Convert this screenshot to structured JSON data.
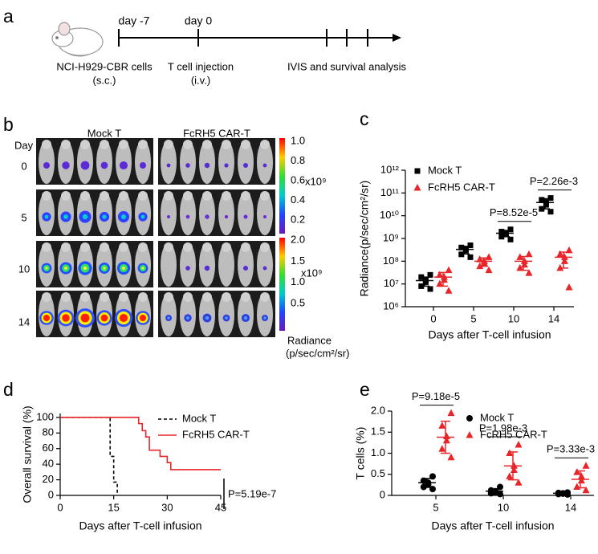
{
  "panel_labels": [
    "a",
    "b",
    "c",
    "d",
    "e"
  ],
  "timeline": {
    "events": [
      {
        "day": "day -7",
        "label": "NCI-H929-CBR cells",
        "route": "(s.c.)"
      },
      {
        "day": "day 0",
        "label": "T cell injection",
        "route": "(i.v.)"
      }
    ],
    "analysis": "IVIS and survival analysis"
  },
  "imaging": {
    "groups": [
      "Mock T",
      "FcRH5 CAR-T"
    ],
    "row_header": "Day",
    "days": [
      "0",
      "5",
      "10",
      "14"
    ],
    "scale_1": {
      "ticks": [
        "1.0",
        "0.8",
        "0.6",
        "0.4",
        "0.2"
      ],
      "unit": "x10⁹"
    },
    "scale_2": {
      "ticks": [
        "2.0",
        "1.5",
        "1.0",
        "0.5"
      ],
      "unit": "x10⁹"
    },
    "legend_title": "Radiance",
    "legend_unit": "(p/sec/cm²/sr)"
  },
  "chart_data": [
    {
      "type": "dotplot",
      "ylabel": "Radiance(p/sec/cm²/sr)",
      "xlabel": "Days after T-cell infusion",
      "categories": [
        "0",
        "5",
        "10",
        "14"
      ],
      "log_y": true,
      "ylim": [
        1000000.0,
        1000000000000.0
      ],
      "yticks": [
        {
          "value": 1000000.0,
          "label": "10⁶"
        },
        {
          "value": 10000000.0,
          "label": "10⁷"
        },
        {
          "value": 100000000.0,
          "label": "10⁸"
        },
        {
          "value": 1000000000.0,
          "label": "10⁹"
        },
        {
          "value": 10000000000.0,
          "label": "10¹⁰"
        },
        {
          "value": 100000000000.0,
          "label": "10¹¹"
        },
        {
          "value": 1000000000000.0,
          "label": "10¹²"
        }
      ],
      "legend": "upper left",
      "series": [
        {
          "name": "Mock T",
          "color": "#000000",
          "marker": "square",
          "values": [
            [
              6000000.0,
              8000000.0,
              12000000.0,
              15000000.0,
              20000000.0,
              25000000.0
            ],
            [
              150000000.0,
              200000000.0,
              300000000.0,
              350000000.0,
              400000000.0,
              500000000.0
            ],
            [
              900000000.0,
              1200000000.0,
              1500000000.0,
              1800000000.0,
              2000000000.0,
              2500000000.0
            ],
            [
              15000000000.0,
              20000000000.0,
              30000000000.0,
              40000000000.0,
              50000000000.0,
              60000000000.0
            ]
          ],
          "mean": [
            14000000.0,
            330000000.0,
            1700000000.0,
            38000000000.0
          ],
          "sd": [
            6000000.0,
            120000000.0,
            500000000.0,
            18000000000.0
          ]
        },
        {
          "name": "FcRH5 CAR-T",
          "color": "#e8262a",
          "marker": "triangle",
          "values": [
            [
              5000000.0,
              10000000.0,
              15000000.0,
              20000000.0,
              25000000.0,
              40000000.0
            ],
            [
              40000000.0,
              60000000.0,
              80000000.0,
              100000000.0,
              120000000.0,
              150000000.0
            ],
            [
              30000000.0,
              50000000.0,
              70000000.0,
              100000000.0,
              150000000.0,
              200000000.0
            ],
            [
              7000000.0,
              50000000.0,
              100000000.0,
              150000000.0,
              200000000.0,
              300000000.0
            ]
          ],
          "mean": [
            20000000.0,
            100000000.0,
            100000000.0,
            150000000.0
          ],
          "sd": [
            12000000.0,
            40000000.0,
            60000000.0,
            100000000.0
          ]
        }
      ],
      "p_values": [
        null,
        null,
        "P=8.52e-5",
        "P=2.26e-3"
      ]
    },
    {
      "type": "step",
      "ylabel": "Overall  survival (%)",
      "xlabel": "Days after T-cell infusion",
      "xlim": [
        0,
        45
      ],
      "xticks": [
        0,
        15,
        30,
        45
      ],
      "ylim": [
        0,
        105
      ],
      "yticks": [
        0,
        20,
        40,
        60,
        80,
        100
      ],
      "legend": "upper right",
      "series": [
        {
          "name": "Mock T",
          "color": "#000000",
          "linestyle": "dashed",
          "x": [
            0,
            14,
            15,
            16
          ],
          "values": [
            100,
            50,
            17,
            0
          ]
        },
        {
          "name": "FcRH5 CAR-T",
          "color": "#e8262a",
          "linestyle": "solid",
          "x": [
            0,
            22,
            23,
            24,
            25,
            28,
            30,
            31,
            45
          ],
          "values": [
            100,
            92,
            83,
            75,
            58,
            50,
            42,
            33,
            33
          ]
        }
      ],
      "annotation": "P=5.19e-7"
    },
    {
      "type": "dotplot",
      "ylabel": "T  cells  (%)",
      "xlabel": "Days after T-cell infusion",
      "categories": [
        "5",
        "10",
        "14"
      ],
      "log_y": false,
      "ylim": [
        0,
        2
      ],
      "yticks": [
        0,
        0.5,
        {
          "value": 1,
          "label": "1.0"
        },
        1.5,
        {
          "value": 2,
          "label": "2.0"
        }
      ],
      "legend": "upper right",
      "series": [
        {
          "name": "Mock T",
          "color": "#000000",
          "marker": "circle",
          "values": [
            [
              0.15,
              0.2,
              0.25,
              0.3,
              0.35,
              0.45
            ],
            [
              0.03,
              0.05,
              0.08,
              0.1,
              0.12,
              0.2
            ],
            [
              0.02,
              0.03,
              0.04,
              0.05,
              0.06,
              0.07
            ]
          ],
          "mean": [
            0.3,
            0.1,
            0.05
          ],
          "sd": [
            0.1,
            0.05,
            0.02
          ]
        },
        {
          "name": "FcRH5 CAR-T",
          "color": "#e8262a",
          "marker": "triangle",
          "values": [
            [
              0.9,
              1.1,
              1.3,
              1.4,
              1.65,
              1.95
            ],
            [
              0.3,
              0.45,
              0.6,
              0.7,
              1.0,
              1.2
            ],
            [
              0.12,
              0.2,
              0.35,
              0.45,
              0.55,
              0.7
            ]
          ],
          "mean": [
            1.38,
            0.7,
            0.38
          ],
          "sd": [
            0.38,
            0.33,
            0.2
          ]
        }
      ],
      "p_values": [
        "P=9.18e-5",
        "P=1.98e-3",
        "P=3.33e-3"
      ]
    }
  ]
}
